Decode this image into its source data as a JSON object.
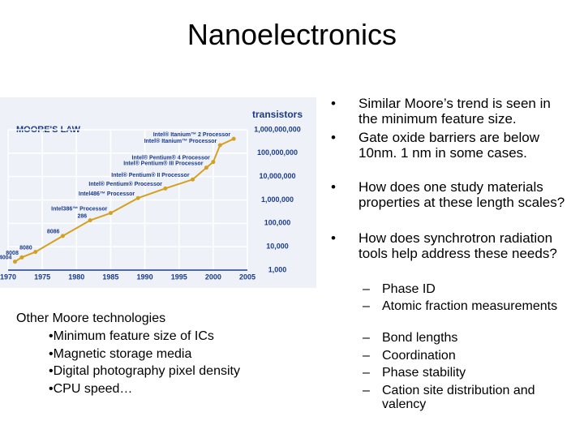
{
  "slide": {
    "title": "Nanoelectronics",
    "bullets": [
      "Similar Moore’s trend is seen in the minimum feature size.",
      "Gate oxide barriers are below 10nm. 1 nm in some cases.",
      "How does one study materials properties at these length scales?",
      "How does synchrotron radiation tools help address these needs?"
    ],
    "sub_bullets": [
      "Phase ID",
      "Atomic fraction measurements",
      "Bond lengths",
      "Coordination",
      "Phase stability",
      "Cation site distribution and valency"
    ],
    "left_heading": "Other Moore technologies",
    "left_items": [
      "Minimum feature size of ICs",
      "Magnetic storage media",
      "Digital photography pixel density",
      "CPU speed…"
    ]
  },
  "chart_data": {
    "type": "line",
    "title": "MOORE'S LAW",
    "y_label": "transistors",
    "log_y": true,
    "color": "#d4a020",
    "xlim": [
      1970,
      2005
    ],
    "xticks": [
      1970,
      1975,
      1980,
      1985,
      1990,
      1995,
      2000,
      2005
    ],
    "ylim": [
      1000,
      1000000000
    ],
    "yticks": [
      {
        "value": 1000,
        "label": "1,000"
      },
      {
        "value": 10000,
        "label": "10,000"
      },
      {
        "value": 100000,
        "label": "100,000"
      },
      {
        "value": 1000000,
        "label": "1,000,000"
      },
      {
        "value": 10000000,
        "label": "10,000,000"
      },
      {
        "value": 100000000,
        "label": "100,000,000"
      },
      {
        "value": 1000000000,
        "label": "1,000,000,000"
      }
    ],
    "categories": [
      "4004",
      "8008",
      "8080",
      "8086",
      "286",
      "Intel386™ Processor",
      "Intel486™ Processor",
      "Intel® Pentium® Processor",
      "Intel® Pentium® II Processor",
      "Intel® Pentium® III Processor",
      "Intel® Pentium® 4 Processor",
      "Intel® Itanium™ Processor",
      "Intel® Itanium™ 2 Processor"
    ],
    "x": [
      1971,
      1972,
      1974,
      1978,
      1982,
      1985,
      1989,
      1993,
      1997,
      1999,
      2000,
      2001,
      2003
    ],
    "values": [
      2300,
      3500,
      6000,
      29000,
      134000,
      275000,
      1200000,
      3100000,
      7500000,
      24000000,
      42000000,
      220000000,
      410000000
    ]
  }
}
